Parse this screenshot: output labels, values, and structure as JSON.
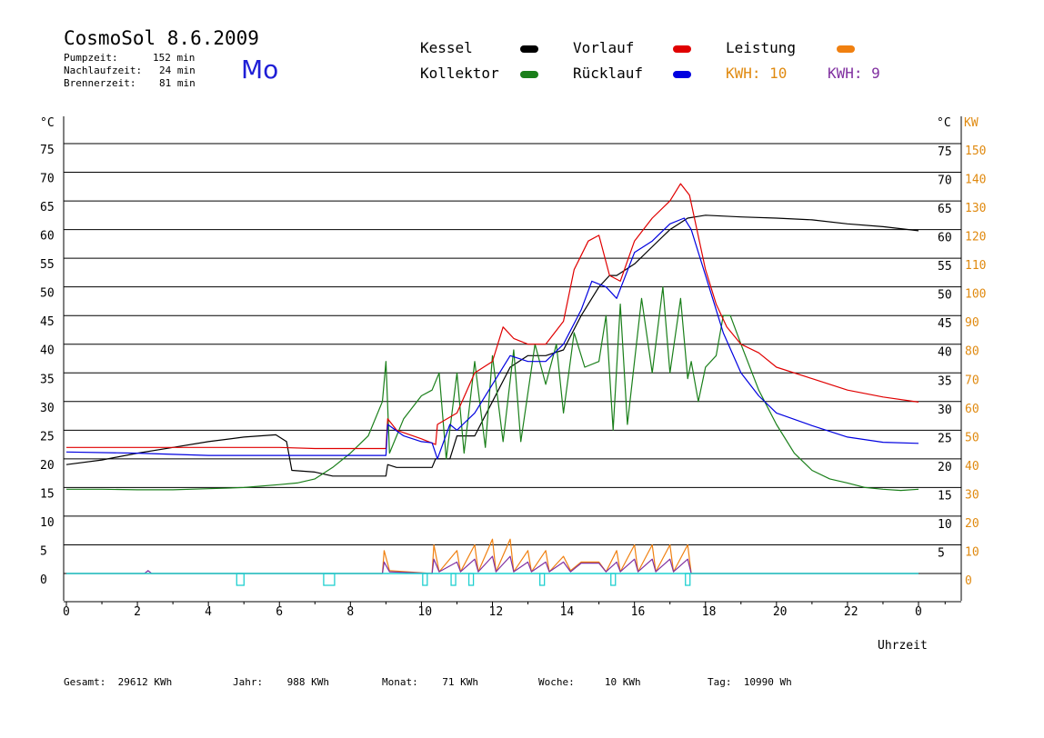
{
  "header": {
    "title": "CosmoSol 8.6.2009",
    "day": "Mo",
    "stats": [
      {
        "label": "Pumpzeit:",
        "value": "152 min"
      },
      {
        "label": "Nachlaufzeit:",
        "value": "24 min"
      },
      {
        "label": "Brennerzeit:",
        "value": "81 min"
      }
    ]
  },
  "legend": {
    "kessel": "Kessel",
    "kollektor": "Kollektor",
    "vorlauf": "Vorlauf",
    "ruecklauf": "Rücklauf",
    "leistung": "Leistung",
    "kwh1": "KWH: 10",
    "kwh2": "KWH: 9"
  },
  "colors": {
    "kessel": "#000000",
    "kollektor": "#1a7f1a",
    "vorlauf": "#e00000",
    "ruecklauf": "#0000e0",
    "leistung": "#f08010",
    "kwh2": "#8030a0",
    "pump": "#20d0d0",
    "axis_right": "#e08a10"
  },
  "footer": {
    "gesamt": "Gesamt:  29612 KWh",
    "jahr": "Jahr:    988 KWh",
    "monat": "Monat:    71 KWh",
    "woche": "Woche:     10 KWh",
    "tag": "Tag:  10990 Wh"
  },
  "chart_data": {
    "type": "line",
    "xlabel": "Uhrzeit",
    "ylabel_left": "°C",
    "ylabel_right_c": "°C",
    "ylabel_right_kw": "KW",
    "xlim": [
      0,
      24
    ],
    "ylim": [
      -5,
      80
    ],
    "x_ticks": [
      "0",
      "2",
      "4",
      "6",
      "8",
      "10",
      "12",
      "14",
      "16",
      "18",
      "20",
      "22",
      "0"
    ],
    "y_ticks_left": [
      0,
      5,
      10,
      15,
      20,
      25,
      30,
      35,
      40,
      45,
      50,
      55,
      60,
      65,
      70,
      75
    ],
    "y_ticks_right_c": [
      5,
      10,
      15,
      20,
      25,
      30,
      35,
      40,
      45,
      50,
      55,
      60,
      65,
      70,
      75
    ],
    "y_ticks_right_kw": [
      0,
      10,
      20,
      30,
      40,
      50,
      60,
      70,
      80,
      90,
      100,
      110,
      120,
      130,
      140,
      150
    ],
    "series": [
      {
        "name": "Kessel",
        "key": "kessel",
        "points": [
          [
            0,
            19
          ],
          [
            1,
            19.8
          ],
          [
            2,
            21
          ],
          [
            3,
            22
          ],
          [
            4,
            23
          ],
          [
            5,
            23.8
          ],
          [
            5.9,
            24.2
          ],
          [
            6.2,
            23
          ],
          [
            6.35,
            18
          ],
          [
            7,
            17.7
          ],
          [
            7.5,
            17
          ],
          [
            8,
            17
          ],
          [
            9,
            17
          ],
          [
            9.05,
            19
          ],
          [
            9.3,
            18.5
          ],
          [
            10.3,
            18.5
          ],
          [
            10.4,
            20
          ],
          [
            10.8,
            20
          ],
          [
            11,
            24
          ],
          [
            11.5,
            24
          ],
          [
            12,
            30
          ],
          [
            12.5,
            36
          ],
          [
            13,
            38
          ],
          [
            13.5,
            38
          ],
          [
            14,
            39
          ],
          [
            14.5,
            45
          ],
          [
            15,
            50
          ],
          [
            15.3,
            52
          ],
          [
            15.5,
            52
          ],
          [
            16,
            54
          ],
          [
            16.5,
            57
          ],
          [
            17,
            60
          ],
          [
            17.5,
            62
          ],
          [
            18,
            62.5
          ],
          [
            19,
            62.2
          ],
          [
            20,
            62
          ],
          [
            21,
            61.7
          ],
          [
            22,
            61
          ],
          [
            23,
            60.5
          ],
          [
            24,
            59.8
          ]
        ]
      },
      {
        "name": "Kollektor",
        "key": "kollektor",
        "points": [
          [
            0,
            14.7
          ],
          [
            1,
            14.7
          ],
          [
            2,
            14.6
          ],
          [
            3,
            14.6
          ],
          [
            4,
            14.8
          ],
          [
            5,
            15
          ],
          [
            6,
            15.5
          ],
          [
            6.5,
            15.8
          ],
          [
            7,
            16.5
          ],
          [
            7.5,
            18.5
          ],
          [
            8,
            21
          ],
          [
            8.5,
            24
          ],
          [
            8.9,
            30
          ],
          [
            9.0,
            37
          ],
          [
            9.1,
            21
          ],
          [
            9.5,
            27
          ],
          [
            10,
            31
          ],
          [
            10.3,
            32
          ],
          [
            10.5,
            35
          ],
          [
            10.7,
            20
          ],
          [
            11,
            35
          ],
          [
            11.2,
            21
          ],
          [
            11.5,
            37
          ],
          [
            11.8,
            22
          ],
          [
            12,
            38
          ],
          [
            12.3,
            23
          ],
          [
            12.6,
            39
          ],
          [
            12.8,
            23
          ],
          [
            13.2,
            40
          ],
          [
            13.5,
            33
          ],
          [
            13.8,
            40
          ],
          [
            14,
            28
          ],
          [
            14.3,
            42
          ],
          [
            14.6,
            36
          ],
          [
            15,
            37
          ],
          [
            15.2,
            45
          ],
          [
            15.4,
            25
          ],
          [
            15.6,
            47
          ],
          [
            15.8,
            26
          ],
          [
            16.2,
            48
          ],
          [
            16.5,
            35
          ],
          [
            16.8,
            50
          ],
          [
            17,
            35
          ],
          [
            17.3,
            48
          ],
          [
            17.5,
            34
          ],
          [
            17.6,
            37
          ],
          [
            17.8,
            30
          ],
          [
            18,
            36
          ],
          [
            18.3,
            38
          ],
          [
            18.5,
            45
          ],
          [
            18.7,
            45
          ],
          [
            19,
            40
          ],
          [
            19.5,
            32
          ],
          [
            20,
            26
          ],
          [
            20.5,
            21
          ],
          [
            21,
            18
          ],
          [
            21.5,
            16.5
          ],
          [
            22,
            15.8
          ],
          [
            22.5,
            15
          ],
          [
            23,
            14.7
          ],
          [
            23.5,
            14.5
          ],
          [
            24,
            14.7
          ]
        ]
      },
      {
        "name": "Vorlauf",
        "key": "vorlauf",
        "points": [
          [
            0,
            22
          ],
          [
            2,
            22
          ],
          [
            4,
            22
          ],
          [
            6,
            22
          ],
          [
            7,
            21.8
          ],
          [
            8.5,
            21.8
          ],
          [
            9,
            21.8
          ],
          [
            9.05,
            27
          ],
          [
            9.3,
            25
          ],
          [
            10,
            23.5
          ],
          [
            10.4,
            22.5
          ],
          [
            10.45,
            26
          ],
          [
            11,
            28
          ],
          [
            11.5,
            35
          ],
          [
            12,
            37
          ],
          [
            12.3,
            43
          ],
          [
            12.6,
            41
          ],
          [
            13,
            40
          ],
          [
            13.5,
            40
          ],
          [
            14,
            44
          ],
          [
            14.3,
            53
          ],
          [
            14.7,
            58
          ],
          [
            15,
            59
          ],
          [
            15.3,
            52
          ],
          [
            15.6,
            51
          ],
          [
            16,
            58
          ],
          [
            16.5,
            62
          ],
          [
            17,
            65
          ],
          [
            17.3,
            68
          ],
          [
            17.55,
            66
          ],
          [
            18,
            53
          ],
          [
            18.3,
            47
          ],
          [
            18.6,
            43
          ],
          [
            19,
            40
          ],
          [
            19.5,
            38.5
          ],
          [
            20,
            36
          ],
          [
            21,
            34
          ],
          [
            22,
            32
          ],
          [
            23,
            30.8
          ],
          [
            24,
            29.9
          ]
        ]
      },
      {
        "name": "Rücklauf",
        "key": "ruecklauf",
        "points": [
          [
            0,
            21.2
          ],
          [
            2,
            21
          ],
          [
            4,
            20.6
          ],
          [
            6,
            20.6
          ],
          [
            7,
            20.6
          ],
          [
            9,
            20.6
          ],
          [
            9.05,
            26
          ],
          [
            9.5,
            24
          ],
          [
            10,
            23
          ],
          [
            10.3,
            22.8
          ],
          [
            10.45,
            20
          ],
          [
            10.8,
            26
          ],
          [
            11,
            25
          ],
          [
            11.5,
            28
          ],
          [
            12,
            33
          ],
          [
            12.5,
            38
          ],
          [
            13,
            37
          ],
          [
            13.5,
            37
          ],
          [
            14,
            40
          ],
          [
            14.5,
            46
          ],
          [
            14.8,
            51
          ],
          [
            15.2,
            50
          ],
          [
            15.5,
            48
          ],
          [
            16,
            56
          ],
          [
            16.5,
            58
          ],
          [
            17,
            61
          ],
          [
            17.4,
            62
          ],
          [
            17.6,
            60
          ],
          [
            18,
            52
          ],
          [
            18.5,
            42
          ],
          [
            19,
            35
          ],
          [
            19.5,
            31
          ],
          [
            20,
            28
          ],
          [
            21,
            25.8
          ],
          [
            22,
            23.8
          ],
          [
            23,
            22.9
          ],
          [
            24,
            22.7
          ]
        ]
      },
      {
        "name": "Leistung",
        "key": "leistung",
        "points": [
          [
            0,
            0
          ],
          [
            8.9,
            0
          ],
          [
            8.95,
            4
          ],
          [
            9.1,
            0.5
          ],
          [
            10.3,
            0
          ],
          [
            10.35,
            5
          ],
          [
            10.5,
            0.3
          ],
          [
            11,
            4
          ],
          [
            11.1,
            0.3
          ],
          [
            11.5,
            5
          ],
          [
            11.6,
            0.3
          ],
          [
            12,
            6
          ],
          [
            12.1,
            0.3
          ],
          [
            12.5,
            6
          ],
          [
            12.6,
            0.3
          ],
          [
            13,
            4
          ],
          [
            13.1,
            0.3
          ],
          [
            13.5,
            4
          ],
          [
            13.6,
            0.3
          ],
          [
            14,
            3
          ],
          [
            14.2,
            0.5
          ],
          [
            14.5,
            2
          ],
          [
            15,
            2
          ],
          [
            15.2,
            0.3
          ],
          [
            15.5,
            4
          ],
          [
            15.6,
            0.3
          ],
          [
            16,
            5
          ],
          [
            16.1,
            0.3
          ],
          [
            16.5,
            5
          ],
          [
            16.6,
            0.3
          ],
          [
            17,
            5
          ],
          [
            17.1,
            0.3
          ],
          [
            17.5,
            5
          ],
          [
            17.6,
            0
          ],
          [
            24,
            0
          ]
        ]
      },
      {
        "name": "KWH: 9",
        "key": "kwh2",
        "points": [
          [
            0,
            0
          ],
          [
            2.2,
            0
          ],
          [
            2.3,
            0.5
          ],
          [
            2.4,
            0
          ],
          [
            8.9,
            0
          ],
          [
            8.95,
            2
          ],
          [
            9.1,
            0.3
          ],
          [
            10.3,
            0
          ],
          [
            10.35,
            2.5
          ],
          [
            10.5,
            0.3
          ],
          [
            11,
            2
          ],
          [
            11.1,
            0.3
          ],
          [
            11.5,
            2.5
          ],
          [
            11.6,
            0.3
          ],
          [
            12,
            3
          ],
          [
            12.1,
            0.3
          ],
          [
            12.5,
            3
          ],
          [
            12.6,
            0.3
          ],
          [
            13,
            2
          ],
          [
            13.1,
            0.3
          ],
          [
            13.5,
            2
          ],
          [
            13.6,
            0.3
          ],
          [
            14,
            2
          ],
          [
            14.2,
            0.3
          ],
          [
            14.5,
            1.8
          ],
          [
            15,
            1.8
          ],
          [
            15.2,
            0.3
          ],
          [
            15.5,
            2
          ],
          [
            15.6,
            0.3
          ],
          [
            16,
            2.5
          ],
          [
            16.1,
            0.3
          ],
          [
            16.5,
            2.5
          ],
          [
            16.6,
            0.3
          ],
          [
            17,
            2.5
          ],
          [
            17.1,
            0.3
          ],
          [
            17.5,
            2.5
          ],
          [
            17.6,
            0
          ],
          [
            24,
            0
          ]
        ]
      }
    ],
    "pump_markers": [
      4.9,
      7.4,
      10.1,
      10.9,
      11.4,
      13.4,
      15.4,
      17.5
    ]
  }
}
